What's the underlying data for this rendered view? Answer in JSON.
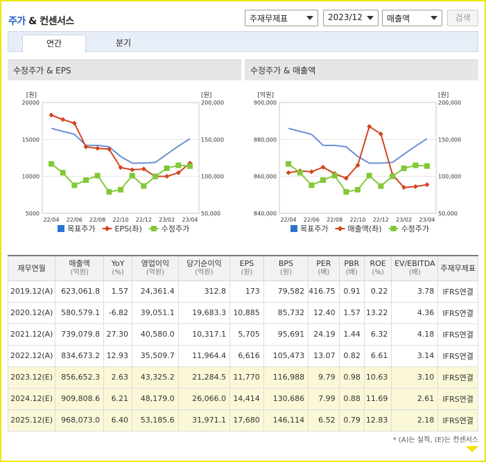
{
  "header": {
    "title_main": "주가",
    "title_rest": " & 컨센서스",
    "select_type": "주재무제표",
    "select_period": "2023/12",
    "select_metric": "매출액",
    "search_label": "검색"
  },
  "tabs": [
    {
      "label": "연간",
      "active": true
    },
    {
      "label": "분기",
      "active": false
    }
  ],
  "chart_data": [
    {
      "type": "line",
      "title": "수정주가 & EPS",
      "left_unit": "[원]",
      "right_unit": "[원]",
      "x": [
        "22/04",
        "22/05",
        "22/06",
        "22/07",
        "22/08",
        "22/09",
        "22/10",
        "22/11",
        "22/12",
        "23/01",
        "23/02",
        "23/03",
        "23/04"
      ],
      "x_tick_labels": [
        "22/04",
        "22/06",
        "22/08",
        "22/10",
        "22/12",
        "23/02",
        "23/04"
      ],
      "y_left_ticks": [
        "20000",
        "15000",
        "10000",
        "5000"
      ],
      "y_right_ticks": [
        "200,000",
        "150,000",
        "100,000",
        "50,000"
      ],
      "ylim_left": [
        5000,
        20000
      ],
      "ylim_right": [
        50000,
        200000
      ],
      "series": [
        {
          "name": "목표주가",
          "axis": "right",
          "color": "#6a8fd6",
          "marker": "none",
          "values": [
            165000,
            161000,
            157000,
            142000,
            142000,
            140000,
            127000,
            118000,
            118000,
            119000,
            130000,
            141000,
            151000
          ]
        },
        {
          "name": "EPS(좌)",
          "axis": "left",
          "color": "#d4421c",
          "marker": "diamond",
          "values": [
            18300,
            17700,
            17200,
            14000,
            13800,
            13700,
            11200,
            10900,
            11000,
            10000,
            10000,
            10500,
            11800
          ]
        },
        {
          "name": "수정주가",
          "axis": "right",
          "color": "#82c837",
          "marker": "square",
          "values": [
            117000,
            105000,
            88000,
            95000,
            101000,
            79000,
            82000,
            101000,
            87000,
            100000,
            111000,
            115000,
            114000
          ]
        }
      ]
    },
    {
      "type": "line",
      "title": "수정주가 & 매출액",
      "left_unit": "[억원]",
      "right_unit": "[원]",
      "x": [
        "22/04",
        "22/05",
        "22/06",
        "22/07",
        "22/08",
        "22/09",
        "22/10",
        "22/11",
        "22/12",
        "23/01",
        "23/02",
        "23/03",
        "23/04"
      ],
      "x_tick_labels": [
        "22/04",
        "22/06",
        "22/08",
        "22/10",
        "22/12",
        "23/02",
        "23/04"
      ],
      "y_left_ticks": [
        "900,000",
        "880,000",
        "860,000",
        "840,000"
      ],
      "y_right_ticks": [
        "200,000",
        "150,000",
        "100,000",
        "50,000"
      ],
      "ylim_left": [
        840000,
        900000
      ],
      "ylim_right": [
        50000,
        200000
      ],
      "series": [
        {
          "name": "목표주가",
          "axis": "right",
          "color": "#6a8fd6",
          "marker": "none",
          "values": [
            165000,
            161000,
            157000,
            142000,
            142000,
            140000,
            127000,
            118000,
            118000,
            119000,
            130000,
            141000,
            151000
          ]
        },
        {
          "name": "매출액(좌)",
          "axis": "left",
          "color": "#d4421c",
          "marker": "diamond",
          "values": [
            862000,
            863000,
            862500,
            865000,
            861500,
            859000,
            866000,
            887000,
            883000,
            861000,
            854000,
            854500,
            855500
          ]
        },
        {
          "name": "수정주가",
          "axis": "right",
          "color": "#82c837",
          "marker": "square",
          "values": [
            117000,
            105000,
            88000,
            95000,
            101000,
            79000,
            82000,
            101000,
            87000,
            100000,
            111000,
            115000,
            114000
          ]
        }
      ]
    }
  ],
  "table": {
    "headers": [
      {
        "label": "재무연월",
        "unit": ""
      },
      {
        "label": "매출액",
        "unit": "(억원)"
      },
      {
        "label": "YoY",
        "unit": "(%)"
      },
      {
        "label": "영업이익",
        "unit": "(억원)"
      },
      {
        "label": "당기순이익",
        "unit": "(억원)"
      },
      {
        "label": "EPS",
        "unit": "(원)"
      },
      {
        "label": "BPS",
        "unit": "(원)"
      },
      {
        "label": "PER",
        "unit": "(배)"
      },
      {
        "label": "PBR",
        "unit": "(배)"
      },
      {
        "label": "ROE",
        "unit": "(%)"
      },
      {
        "label": "EV/EBITDA",
        "unit": "(배)"
      },
      {
        "label": "주재무제표",
        "unit": ""
      }
    ],
    "rows": [
      {
        "estimate": false,
        "cells": [
          "2019.12(A)",
          "623,061.8",
          "1.57",
          "24,361.4",
          "312.8",
          "173",
          "79,582",
          "416.75",
          "0.91",
          "0.22",
          "3.78",
          "IFRS연결"
        ]
      },
      {
        "estimate": false,
        "cells": [
          "2020.12(A)",
          "580,579.1",
          "-6.82",
          "39,051.1",
          "19,683.3",
          "10,885",
          "85,732",
          "12.40",
          "1.57",
          "13.22",
          "4.36",
          "IFRS연결"
        ]
      },
      {
        "estimate": false,
        "cells": [
          "2021.12(A)",
          "739,079.8",
          "27.30",
          "40,580.0",
          "10,317.1",
          "5,705",
          "95,691",
          "24.19",
          "1.44",
          "6.32",
          "4.18",
          "IFRS연결"
        ]
      },
      {
        "estimate": false,
        "cells": [
          "2022.12(A)",
          "834,673.2",
          "12.93",
          "35,509.7",
          "11,964.4",
          "6,616",
          "105,473",
          "13.07",
          "0.82",
          "6.61",
          "3.14",
          "IFRS연결"
        ]
      },
      {
        "estimate": true,
        "cells": [
          "2023.12(E)",
          "856,652.3",
          "2.63",
          "43,325.2",
          "21,284.5",
          "11,770",
          "116,988",
          "9.79",
          "0.98",
          "10.63",
          "3.10",
          "IFRS연결"
        ]
      },
      {
        "estimate": true,
        "cells": [
          "2024.12(E)",
          "909,808.6",
          "6.21",
          "48,179.0",
          "26,066.0",
          "14,414",
          "130,686",
          "7.99",
          "0.88",
          "11.69",
          "2.61",
          "IFRS연결"
        ]
      },
      {
        "estimate": true,
        "cells": [
          "2025.12(E)",
          "968,073.0",
          "6.40",
          "53,185.6",
          "31,971.1",
          "17,680",
          "146,114",
          "6.52",
          "0.79",
          "12.83",
          "2.18",
          "IFRS연결"
        ]
      }
    ]
  },
  "note": "* (A)는 실적, (E)는 컨센서스"
}
